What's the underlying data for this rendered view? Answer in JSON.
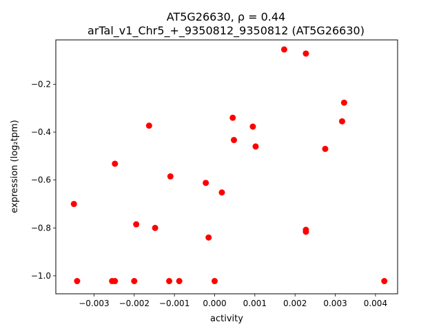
{
  "chart_data": {
    "type": "scatter",
    "title_line1": "AT5G26630, ρ = 0.44",
    "title_line2": "arTal_v1_Chr5_+_9350812_9350812 (AT5G26630)",
    "xlabel": "activity",
    "ylabel": "expression (log₂tpm)",
    "xlim": [
      -0.00395,
      0.00455
    ],
    "ylim": [
      -1.075,
      -0.015
    ],
    "xticks": [
      {
        "value": -0.003,
        "label": "−0.003"
      },
      {
        "value": -0.002,
        "label": "−0.002"
      },
      {
        "value": -0.001,
        "label": "−0.001"
      },
      {
        "value": 0.0,
        "label": "0.000"
      },
      {
        "value": 0.001,
        "label": "0.001"
      },
      {
        "value": 0.002,
        "label": "0.002"
      },
      {
        "value": 0.003,
        "label": "0.003"
      },
      {
        "value": 0.004,
        "label": "0.004"
      }
    ],
    "yticks": [
      {
        "value": -1.0,
        "label": "−1.0"
      },
      {
        "value": -0.8,
        "label": "−0.8"
      },
      {
        "value": -0.6,
        "label": "−0.6"
      },
      {
        "value": -0.4,
        "label": "−0.4"
      },
      {
        "value": -0.2,
        "label": "−0.2"
      }
    ],
    "grid": false,
    "marker_color": "#ff0000",
    "points": [
      {
        "x": -0.0035,
        "y": -0.7
      },
      {
        "x": -0.00342,
        "y": -1.022
      },
      {
        "x": -0.00255,
        "y": -1.022
      },
      {
        "x": -0.00248,
        "y": -1.022
      },
      {
        "x": -0.00248,
        "y": -0.532
      },
      {
        "x": -0.002,
        "y": -1.022
      },
      {
        "x": -0.00195,
        "y": -0.785
      },
      {
        "x": -0.00163,
        "y": -0.373
      },
      {
        "x": -0.00148,
        "y": -0.8
      },
      {
        "x": -0.00113,
        "y": -1.022
      },
      {
        "x": -0.0011,
        "y": -0.585
      },
      {
        "x": -0.00088,
        "y": -1.022
      },
      {
        "x": -0.00022,
        "y": -0.612
      },
      {
        "x": -0.00015,
        "y": -0.84
      },
      {
        "x": 0.0,
        "y": -1.022
      },
      {
        "x": 0.00018,
        "y": -0.652
      },
      {
        "x": 0.00045,
        "y": -0.34
      },
      {
        "x": 0.00048,
        "y": -0.433
      },
      {
        "x": 0.00095,
        "y": -0.377
      },
      {
        "x": 0.00102,
        "y": -0.46
      },
      {
        "x": 0.00173,
        "y": -0.055
      },
      {
        "x": 0.00227,
        "y": -0.072
      },
      {
        "x": 0.00227,
        "y": -0.808
      },
      {
        "x": 0.00227,
        "y": -0.816
      },
      {
        "x": 0.00275,
        "y": -0.47
      },
      {
        "x": 0.00317,
        "y": -0.355
      },
      {
        "x": 0.00322,
        "y": -0.277
      },
      {
        "x": 0.00422,
        "y": -1.022
      }
    ]
  }
}
